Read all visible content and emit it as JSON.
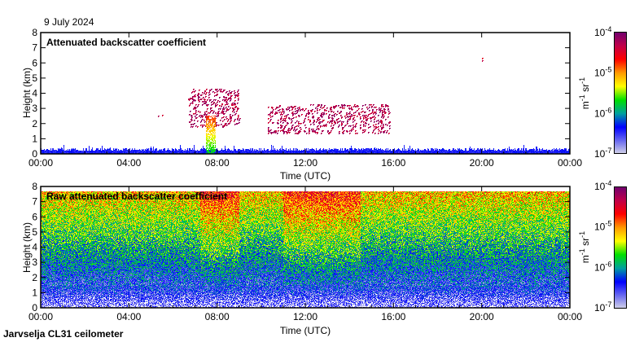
{
  "header": {
    "date": "9 July 2024"
  },
  "footer": {
    "station": "Jarvselja CL31 ceilometer"
  },
  "chart_data": [
    {
      "type": "heatmap",
      "title": "Attenuated backscatter coefficient",
      "xlabel": "Time (UTC)",
      "ylabel": "Height (km)",
      "xlim": [
        "00:00",
        "00:00"
      ],
      "xticks": [
        "00:00",
        "04:00",
        "08:00",
        "12:00",
        "16:00",
        "20:00",
        "00:00"
      ],
      "ylim": [
        0,
        8
      ],
      "yticks": [
        "0",
        "1",
        "2",
        "3",
        "4",
        "5",
        "6",
        "7",
        "8"
      ],
      "colorbar": {
        "label_base": "m",
        "label_exp1": "-1",
        "label_mid": " sr",
        "label_exp2": "-1",
        "scale": "log",
        "range": [
          1e-07,
          0.0001
        ],
        "ticks": [
          {
            "base": "10",
            "exp": "-4"
          },
          {
            "base": "10",
            "exp": "-5"
          },
          {
            "base": "10",
            "exp": "-6"
          },
          {
            "base": "10",
            "exp": "-7"
          }
        ]
      },
      "features": [
        {
          "desc": "boundary layer",
          "t_start": 0,
          "t_end": 24,
          "h_low": 0,
          "h_high": 0.4,
          "level": 0.25
        },
        {
          "desc": "cloud",
          "t_start": 5.3,
          "t_end": 5.5,
          "h_low": 2.5,
          "h_high": 2.6,
          "level": 0.85
        },
        {
          "desc": "cloud",
          "t_start": 6.7,
          "t_end": 9.0,
          "h_low": 1.8,
          "h_high": 4.3,
          "level": 0.85
        },
        {
          "desc": "precipitation",
          "t_start": 7.5,
          "t_end": 7.9,
          "h_low": 0,
          "h_high": 2.5,
          "level": 0.6
        },
        {
          "desc": "cloud",
          "t_start": 10.3,
          "t_end": 15.8,
          "h_low": 1.4,
          "h_high": 3.3,
          "level": 0.85
        },
        {
          "desc": "cloud",
          "t_start": 20.0,
          "t_end": 20.05,
          "h_low": 6.2,
          "h_high": 6.4,
          "level": 0.8
        }
      ]
    },
    {
      "type": "heatmap",
      "title": "Raw attenuated backscatter coefficient",
      "xlabel": "Time (UTC)",
      "ylabel": "Height (km)",
      "xticks": [
        "00:00",
        "04:00",
        "08:00",
        "12:00",
        "16:00",
        "20:00",
        "00:00"
      ],
      "ylim": [
        0,
        8
      ],
      "yticks": [
        "0",
        "1",
        "2",
        "3",
        "4",
        "5",
        "6",
        "7",
        "8"
      ],
      "colorbar": {
        "label_base": "m",
        "label_exp1": "-1",
        "label_mid": " sr",
        "label_exp2": "-1",
        "scale": "log",
        "range": [
          1e-07,
          0.0001
        ],
        "ticks": [
          {
            "base": "10",
            "exp": "-4"
          },
          {
            "base": "10",
            "exp": "-5"
          },
          {
            "base": "10",
            "exp": "-6"
          },
          {
            "base": "10",
            "exp": "-7"
          }
        ]
      },
      "noisy_periods": [
        {
          "t_start": 7.2,
          "t_end": 9.0
        },
        {
          "t_start": 11.0,
          "t_end": 14.5
        }
      ]
    }
  ],
  "colors": {
    "axis": "#000000",
    "cmap": [
      "#d8d8e8",
      "#6a6af0",
      "#0000ff",
      "#00a0a0",
      "#00e000",
      "#ffff00",
      "#ff9900",
      "#ff0000",
      "#c0004a",
      "#700070"
    ]
  }
}
